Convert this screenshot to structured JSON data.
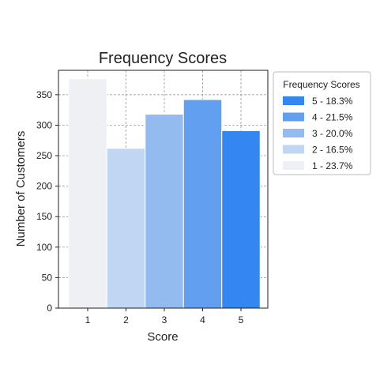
{
  "chart_data": {
    "type": "bar",
    "title": "Frequency Scores",
    "xlabel": "Score",
    "ylabel": "Number of Customers",
    "categories": [
      "1",
      "2",
      "3",
      "4",
      "5"
    ],
    "values": [
      376,
      262,
      318,
      342,
      291
    ],
    "colors": [
      "#eef0f3",
      "#c0d6f2",
      "#93bbf0",
      "#639ff0",
      "#3486f0"
    ],
    "ylim": [
      0,
      390
    ],
    "yticks": [
      0,
      50,
      100,
      150,
      200,
      250,
      300,
      350
    ],
    "grid": true,
    "legend": {
      "title": "Frequency Scores",
      "placement": "outside-right",
      "entries": [
        {
          "label": "5 - 18.3%",
          "color": "#3486f0"
        },
        {
          "label": "4 - 21.5%",
          "color": "#639ff0"
        },
        {
          "label": "3 - 20.0%",
          "color": "#93bbf0"
        },
        {
          "label": "2 - 16.5%",
          "color": "#c0d6f2"
        },
        {
          "label": "1 - 23.7%",
          "color": "#eef0f3"
        }
      ]
    }
  }
}
